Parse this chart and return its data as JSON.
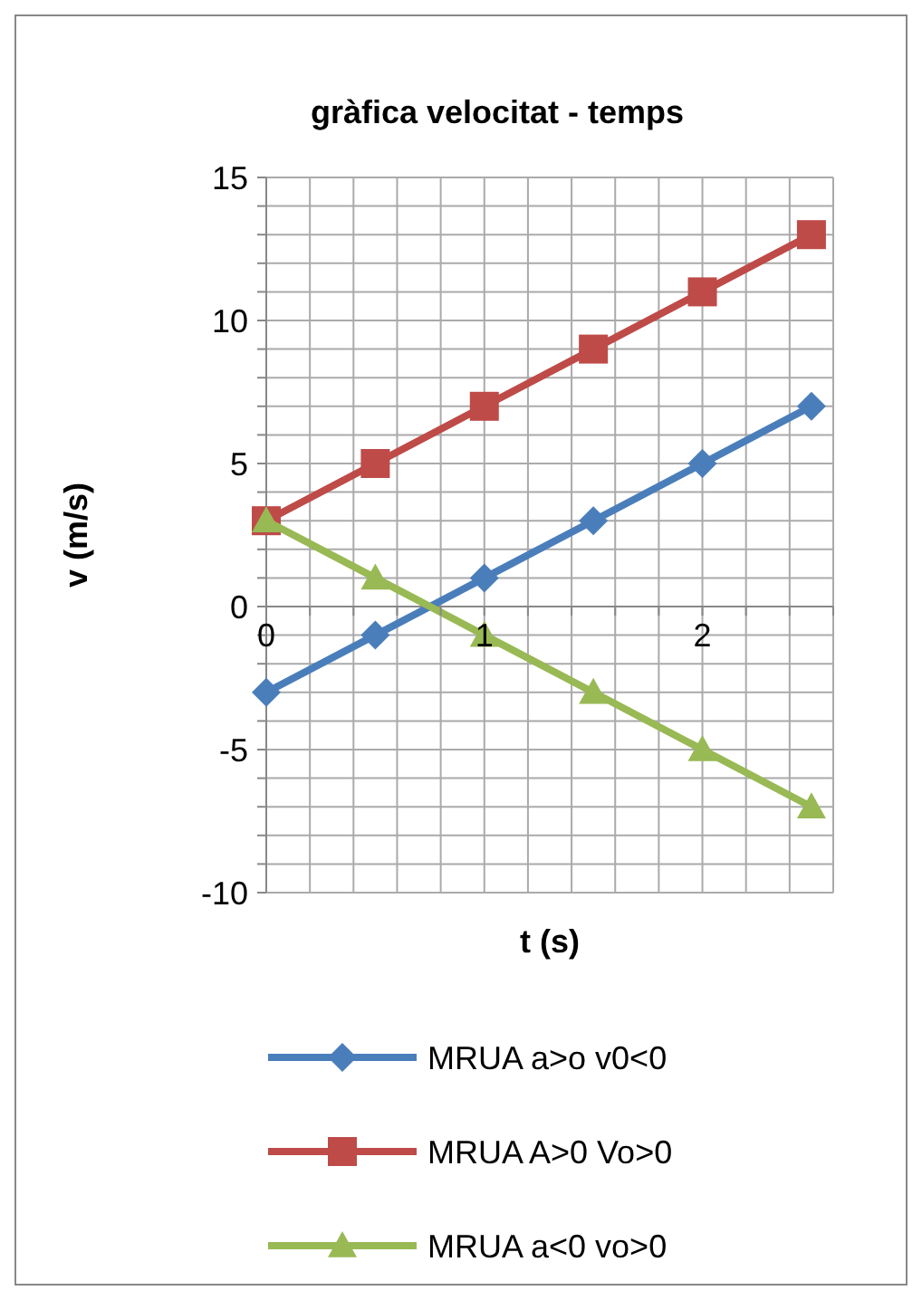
{
  "chart_data": {
    "type": "line",
    "title": "gràfica velocitat - temps",
    "xlabel": "t (s)",
    "ylabel": "v (m/s)",
    "x": [
      0,
      0.5,
      1,
      1.5,
      2,
      2.5
    ],
    "series": [
      {
        "name": "MRUA a>o v0<0",
        "color": "#4a7ebb",
        "marker": "diamond",
        "values": [
          -3,
          -1,
          1,
          3,
          5,
          7
        ]
      },
      {
        "name": "MRUA A>0 Vo>0",
        "color": "#be4b48",
        "marker": "square",
        "values": [
          3,
          5,
          7,
          9,
          11,
          13
        ]
      },
      {
        "name": "MRUA a<0 vo>0",
        "color": "#98b954",
        "marker": "triangle",
        "values": [
          3,
          1,
          -1,
          -3,
          -5,
          -7
        ]
      }
    ],
    "xlim": [
      0,
      2.6
    ],
    "xticks": [
      0,
      {
        "value": 0.2,
        "label": null
      },
      {
        "value": 0.4,
        "label": null
      },
      {
        "value": 0.6,
        "label": null
      },
      {
        "value": 0.8,
        "label": null
      },
      1,
      {
        "value": 1.2,
        "label": null
      },
      {
        "value": 1.4,
        "label": null
      },
      {
        "value": 1.6,
        "label": null
      },
      {
        "value": 1.8,
        "label": null
      },
      2,
      {
        "value": 2.2,
        "label": null
      },
      {
        "value": 2.4,
        "label": null
      },
      {
        "value": 2.6,
        "label": null
      }
    ],
    "ylim": [
      -10,
      15
    ],
    "yticks": [
      -10,
      {
        "value": -9,
        "label": null
      },
      {
        "value": -8,
        "label": null
      },
      {
        "value": -7,
        "label": null
      },
      {
        "value": -6,
        "label": null
      },
      -5,
      {
        "value": -4,
        "label": null
      },
      {
        "value": -3,
        "label": null
      },
      {
        "value": -2,
        "label": null
      },
      {
        "value": -1,
        "label": null
      },
      0,
      {
        "value": 1,
        "label": null
      },
      {
        "value": 2,
        "label": null
      },
      {
        "value": 3,
        "label": null
      },
      {
        "value": 4,
        "label": null
      },
      5,
      {
        "value": 6,
        "label": null
      },
      {
        "value": 7,
        "label": null
      },
      {
        "value": 8,
        "label": null
      },
      {
        "value": 9,
        "label": null
      },
      10,
      {
        "value": 11,
        "label": null
      },
      {
        "value": 12,
        "label": null
      },
      {
        "value": 13,
        "label": null
      },
      {
        "value": 14,
        "label": null
      },
      15
    ],
    "grid": true,
    "legend": "bottom",
    "line_style": "solid"
  }
}
